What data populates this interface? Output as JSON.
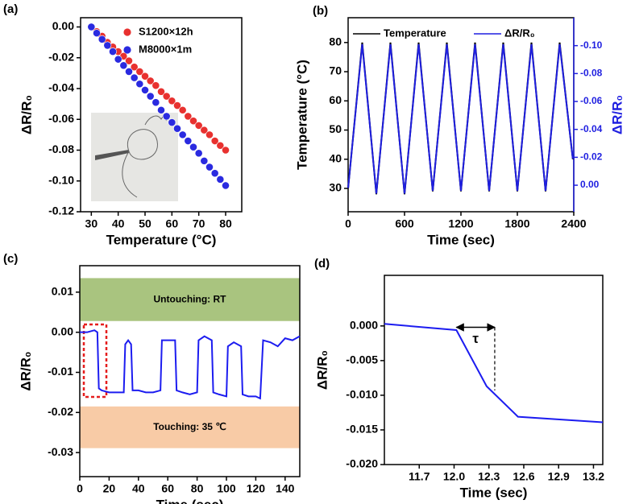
{
  "chart_data": [
    {
      "type": "scatter",
      "panel_label": "(a)",
      "x_label": "Temperature (°C)",
      "y_label": "ΔR/R₀",
      "xlim": [
        26,
        86
      ],
      "xticks": [
        30,
        40,
        50,
        60,
        70,
        80
      ],
      "ylim": [
        -0.12,
        0.006
      ],
      "yticks": [
        {
          "value": 0,
          "label": "0.00"
        },
        -0.02,
        -0.04,
        -0.06,
        -0.08,
        {
          "value": -0.1,
          "label": "-0.10"
        },
        -0.12
      ],
      "legend": "upper right",
      "x": [
        30,
        32,
        34,
        36,
        38,
        40,
        42,
        44,
        46,
        48,
        50,
        52,
        54,
        56,
        58,
        60,
        62,
        64,
        66,
        68,
        70,
        72,
        74,
        76,
        78,
        80
      ],
      "series": [
        {
          "name": "S1200×12h",
          "color": "#e8312f",
          "values": [
            0,
            -0.003,
            -0.006,
            -0.01,
            -0.013,
            -0.016,
            -0.019,
            -0.022,
            -0.026,
            -0.029,
            -0.032,
            -0.035,
            -0.038,
            -0.042,
            -0.045,
            -0.048,
            -0.051,
            -0.054,
            -0.058,
            -0.061,
            -0.064,
            -0.067,
            -0.07,
            -0.074,
            -0.077,
            -0.08
          ]
        },
        {
          "name": "M8000×1m",
          "color": "#2a2ae0",
          "values": [
            0,
            -0.004,
            -0.008,
            -0.012,
            -0.016,
            -0.021,
            -0.025,
            -0.029,
            -0.033,
            -0.037,
            -0.041,
            -0.045,
            -0.049,
            -0.054,
            -0.058,
            -0.062,
            -0.066,
            -0.07,
            -0.074,
            -0.078,
            -0.082,
            -0.087,
            -0.091,
            -0.095,
            -0.099,
            -0.103
          ]
        }
      ]
    },
    {
      "type": "line",
      "panel_label": "(b)",
      "x_label": "Time (sec)",
      "y_label": "Temperature (°C)",
      "y2_label": "ΔR/R₀",
      "xlim": [
        0,
        2400
      ],
      "xticks": [
        0,
        600,
        1200,
        1800,
        2400
      ],
      "ylim": [
        22,
        88.5
      ],
      "yticks": [
        30,
        40,
        50,
        60,
        70,
        80
      ],
      "y2lim": [
        0.019,
        -0.12
      ],
      "y2ticks": [
        {
          "value": 0,
          "label": "0.00"
        },
        -0.02,
        -0.04,
        -0.06,
        -0.08,
        {
          "value": -0.1,
          "label": "-0.10"
        }
      ],
      "legend": "upper left",
      "x": [
        0,
        150,
        300,
        450,
        600,
        750,
        900,
        1050,
        1200,
        1350,
        1500,
        1650,
        1800,
        1950,
        2100,
        2250,
        2390
      ],
      "series": [
        {
          "name": "Temperature",
          "color": "#000000",
          "values": [
            30,
            80,
            28,
            80,
            28,
            80,
            29,
            80,
            29,
            80,
            29,
            80,
            29,
            80,
            29,
            80,
            40
          ]
        },
        {
          "name": "ΔR/R₀",
          "color": "#1f1fe0",
          "axis": "y2",
          "values": [
            0.002,
            -0.101,
            0.006,
            -0.101,
            0.006,
            -0.101,
            0.004,
            -0.101,
            0.004,
            -0.101,
            0.004,
            -0.101,
            0.004,
            -0.101,
            0.004,
            -0.101,
            -0.019
          ]
        }
      ]
    },
    {
      "type": "line",
      "panel_label": "(c)",
      "x_label": "Time (sec)",
      "y_label": "ΔR/R₀",
      "xlim": [
        0,
        150
      ],
      "xticks": [
        0,
        20,
        40,
        60,
        80,
        100,
        120,
        140
      ],
      "ylim": [
        -0.036,
        0.0166
      ],
      "yticks": [
        0.01,
        {
          "value": 0,
          "label": "0.00"
        },
        -0.01,
        -0.02,
        -0.03
      ],
      "bands": [
        {
          "text": "Untouching: RT",
          "y": [
            0.0028,
            0.0135
          ],
          "color": "#a9c47f"
        },
        {
          "text": "Touching: 35 ℃",
          "y": [
            -0.0289,
            -0.0185
          ],
          "color": "#f8cba6"
        }
      ],
      "x": [
        0,
        5,
        10,
        12,
        13,
        15,
        20,
        25,
        30,
        31,
        33,
        35,
        36,
        40,
        45,
        50,
        55,
        56,
        60,
        65,
        66,
        70,
        75,
        80,
        81,
        85,
        90,
        91,
        95,
        100,
        101,
        105,
        110,
        111,
        115,
        120,
        123,
        125,
        130,
        135,
        140,
        145,
        150
      ],
      "series": [
        {
          "color": "#1c1cf0",
          "values": [
            0,
            0,
            0.0005,
            0,
            -0.014,
            -0.0145,
            -0.015,
            -0.015,
            -0.015,
            -0.003,
            -0.002,
            -0.003,
            -0.0145,
            -0.0145,
            -0.015,
            -0.015,
            -0.0145,
            -0.002,
            -0.002,
            -0.002,
            -0.0145,
            -0.015,
            -0.0155,
            -0.015,
            -0.002,
            -0.001,
            -0.002,
            -0.015,
            -0.0155,
            -0.016,
            -0.0035,
            -0.0025,
            -0.0035,
            -0.0155,
            -0.016,
            -0.016,
            -0.0165,
            -0.002,
            -0.0025,
            -0.0035,
            -0.0015,
            -0.002,
            -0.001
          ]
        }
      ]
    },
    {
      "type": "line",
      "panel_label": "(d)",
      "x_label": "Time (sec)",
      "y_label": "ΔR/R₀",
      "xlim": [
        11.4,
        13.28
      ],
      "xticks": [
        11.7,
        {
          "value": 12,
          "label": "12.0"
        },
        12.3,
        12.6,
        12.9,
        13.2
      ],
      "ylim": [
        -0.02,
        0.0073
      ],
      "yticks": [
        {
          "value": 0,
          "label": "0.000"
        },
        -0.005,
        {
          "value": -0.01,
          "label": "-0.010"
        },
        -0.015,
        {
          "value": -0.02,
          "label": "-0.020"
        }
      ],
      "annotation": {
        "text": "τ",
        "x": [
          12.02,
          12.35
        ],
        "y": -0.0002,
        "y_end": -0.0093
      },
      "x": [
        11.4,
        12.02,
        12.28,
        12.55,
        13.28
      ],
      "series": [
        {
          "color": "#1c1cf0",
          "values": [
            0.0003,
            -0.0006,
            -0.0087,
            -0.0131,
            -0.0139
          ]
        }
      ]
    }
  ]
}
